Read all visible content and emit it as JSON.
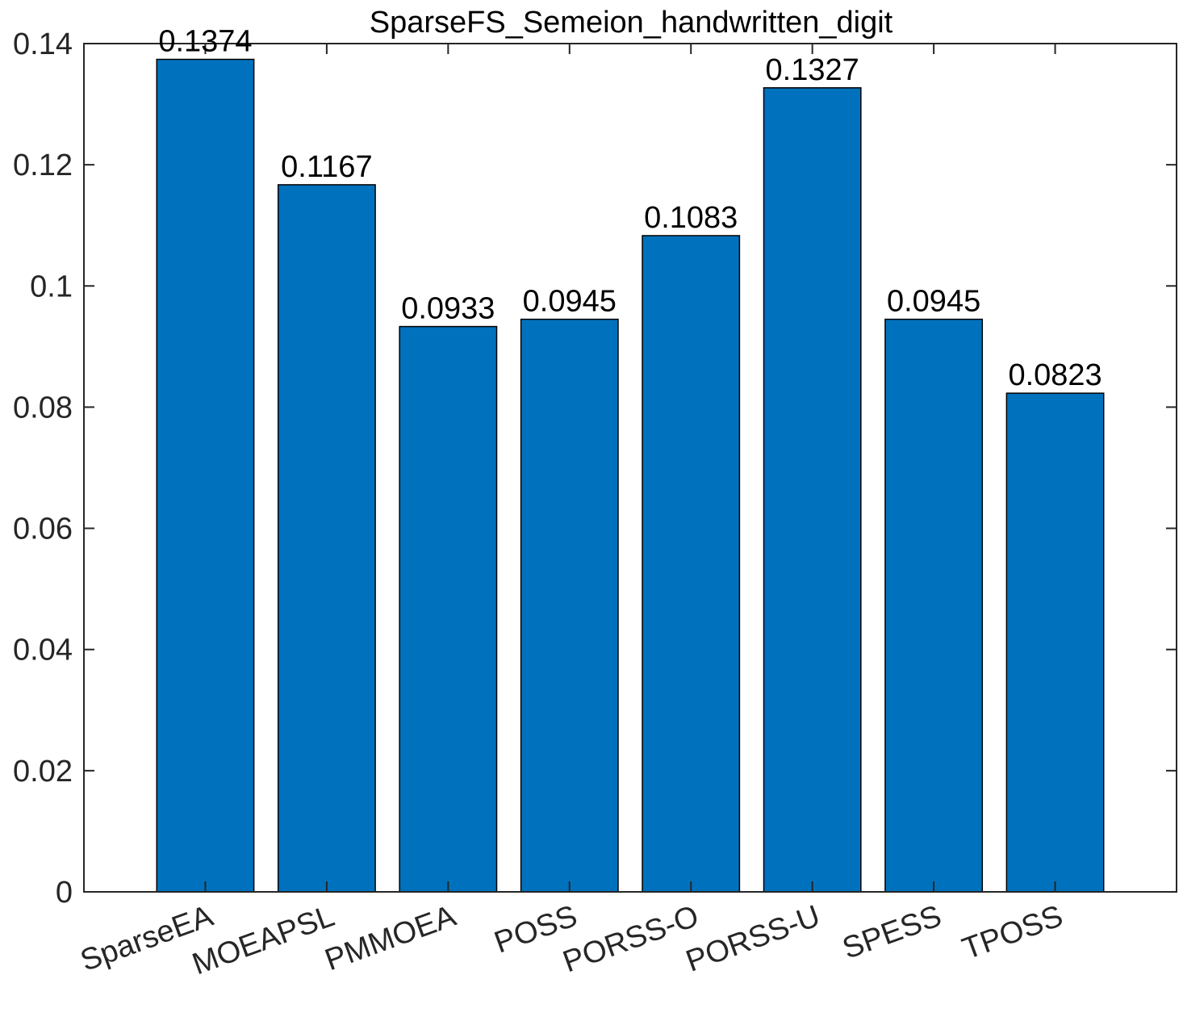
{
  "chart_data": {
    "type": "bar",
    "title": "SparseFS_Semeion_handwritten_digit",
    "xlabel": "",
    "ylabel": "",
    "categories": [
      "SparseEA",
      "MOEAPSL",
      "PMMOEA",
      "POSS",
      "PORSS-O",
      "PORSS-U",
      "SPESS",
      "TPOSS"
    ],
    "values": [
      0.1374,
      0.1167,
      0.0933,
      0.0945,
      0.1083,
      0.1327,
      0.0945,
      0.0823
    ],
    "data_labels": [
      "0.1374",
      "0.1167",
      "0.0933",
      "0.0945",
      "0.1083",
      "0.1327",
      "0.0945",
      "0.0823"
    ],
    "ylim": [
      0,
      0.14
    ],
    "yticks": [
      0,
      0.02,
      0.04,
      0.06,
      0.08,
      0.1,
      0.12,
      0.14
    ],
    "ytick_labels": [
      "0",
      "0.02",
      "0.04",
      "0.06",
      "0.08",
      "0.1",
      "0.12",
      "0.14"
    ],
    "grid": false,
    "legend": "none",
    "bar_color": "#0072BD",
    "axis_color": "#262626"
  }
}
